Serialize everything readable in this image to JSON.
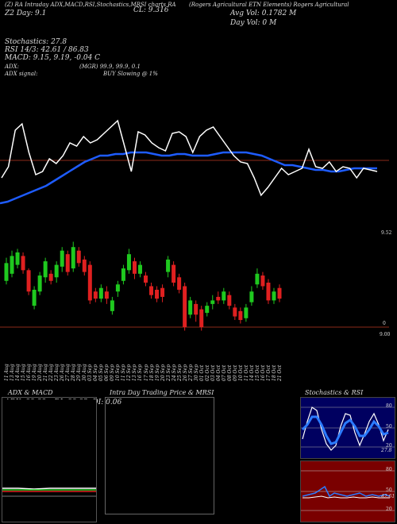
{
  "header": {
    "left_title": "(Z) RA Intraday ADX,MACD,RSI,Stochastics,MRSI charts RA",
    "cl_label": "CL: 9.316",
    "right_title": "(Rogers Agricultural ETN Elements) Rogers Agricultural",
    "line2_left": "Z2 Day:",
    "line2_val": "9.1",
    "avg_vol": "Avg Vol: 0.1782  M",
    "day_vol": "Day Vol: 0  M",
    "stochastics": "Stochastics: 27.8",
    "rsi": "RSI 14/3: 42.61 / 86.83",
    "macd": "MACD: 9.15, 9.19, -0.04  C",
    "adx": "ADX:",
    "mgr": "(MGR) 99.9,  99.9,  0.1",
    "adx_signal": "ADX  signal:",
    "buy_slowing": "BUY Slowing @ 1%"
  },
  "price_axis": {
    "top_label": "9.52",
    "zero_label": "0",
    "bottom_label": "9.00"
  },
  "x_dates": [
    "11 Aug",
    "13 Aug",
    "14 Aug",
    "15 Aug",
    "16 Aug",
    "19 Aug",
    "20 Aug",
    "21 Aug",
    "22 Aug",
    "23 Aug",
    "26 Aug",
    "27 Aug",
    "28 Aug",
    "29 Aug",
    "30 Aug",
    "03 Sep",
    "04 Sep",
    "05 Sep",
    "06 Sep",
    "09 Sep",
    "10 Sep",
    "11 Sep",
    "12 Sep",
    "13 Sep",
    "16 Sep",
    "17 Sep",
    "18 Sep",
    "19 Sep",
    "20 Sep",
    "23 Sep",
    "24 Sep",
    "25 Sep",
    "26 Sep",
    "27 Sep",
    "30 Sep",
    "01 Oct",
    "02 Oct",
    "03 Oct",
    "04 Oct",
    "07 Oct",
    "08 Oct",
    "09 Oct",
    "10 Oct",
    "11 Oct",
    "14 Oct",
    "15 Oct",
    "16 Oct",
    "17 Oct",
    "18 Oct",
    "21 Oct"
  ],
  "panels": {
    "adx_title": "ADX  & MACD",
    "adx_values": "ADX: 99.88  +DI: 99.92  -DI: 0.06",
    "intra_title": "Intra  Day Trading Price  & MRSI",
    "stoch_title": "Stochastics & RSI",
    "stoch_levels": [
      "80",
      "50",
      "20"
    ],
    "rsi_levels": [
      "80",
      "50",
      "20"
    ],
    "stoch_val": "27.8",
    "rsi_val": "42.61"
  },
  "colors": {
    "bull": "#1fc91f",
    "bear": "#e02020",
    "ma": "#1e5cff",
    "price": "#ffffff",
    "navy": "#000060",
    "maroon": "#7a0000"
  },
  "chart_data": {
    "type": "candlestick",
    "price_line": [
      0.62,
      0.55,
      0.32,
      0.28,
      0.46,
      0.6,
      0.58,
      0.5,
      0.53,
      0.48,
      0.4,
      0.42,
      0.36,
      0.4,
      0.38,
      0.34,
      0.3,
      0.26,
      0.42,
      0.58,
      0.33,
      0.35,
      0.4,
      0.43,
      0.45,
      0.34,
      0.33,
      0.36,
      0.46,
      0.36,
      0.32,
      0.3,
      0.36,
      0.42,
      0.48,
      0.52,
      0.53,
      0.62,
      0.73,
      0.68,
      0.62,
      0.56,
      0.6,
      0.58,
      0.56,
      0.44,
      0.55,
      0.56,
      0.52,
      0.58,
      0.55,
      0.56,
      0.62,
      0.56,
      0.57,
      0.58
    ],
    "ma_line": [
      0.78,
      0.77,
      0.75,
      0.73,
      0.71,
      0.69,
      0.67,
      0.64,
      0.61,
      0.58,
      0.55,
      0.52,
      0.5,
      0.48,
      0.48,
      0.47,
      0.47,
      0.46,
      0.46,
      0.46,
      0.47,
      0.48,
      0.48,
      0.47,
      0.47,
      0.48,
      0.48,
      0.48,
      0.47,
      0.46,
      0.46,
      0.46,
      0.46,
      0.47,
      0.48,
      0.5,
      0.52,
      0.54,
      0.54,
      0.55,
      0.56,
      0.57,
      0.57,
      0.58,
      0.58,
      0.57,
      0.56,
      0.56,
      0.56,
      0.56
    ],
    "candles": [
      {
        "o": 0.52,
        "c": 0.72,
        "h": 0.78,
        "l": 0.48
      },
      {
        "o": 0.6,
        "c": 0.8,
        "h": 0.86,
        "l": 0.56
      },
      {
        "o": 0.7,
        "c": 0.84,
        "h": 0.88,
        "l": 0.66
      },
      {
        "o": 0.8,
        "c": 0.64,
        "h": 0.84,
        "l": 0.6
      },
      {
        "o": 0.64,
        "c": 0.4,
        "h": 0.66,
        "l": 0.36
      },
      {
        "o": 0.24,
        "c": 0.42,
        "h": 0.46,
        "l": 0.2
      },
      {
        "o": 0.4,
        "c": 0.58,
        "h": 0.62,
        "l": 0.36
      },
      {
        "o": 0.56,
        "c": 0.74,
        "h": 0.78,
        "l": 0.5
      },
      {
        "o": 0.6,
        "c": 0.52,
        "h": 0.64,
        "l": 0.48
      },
      {
        "o": 0.56,
        "c": 0.7,
        "h": 0.74,
        "l": 0.5
      },
      {
        "o": 0.68,
        "c": 0.86,
        "h": 0.9,
        "l": 0.62
      },
      {
        "o": 0.82,
        "c": 0.62,
        "h": 0.86,
        "l": 0.58
      },
      {
        "o": 0.66,
        "c": 0.9,
        "h": 0.96,
        "l": 0.62
      },
      {
        "o": 0.86,
        "c": 0.72,
        "h": 0.9,
        "l": 0.68
      },
      {
        "o": 0.76,
        "c": 0.62,
        "h": 0.8,
        "l": 0.58
      },
      {
        "o": 0.7,
        "c": 0.3,
        "h": 0.74,
        "l": 0.26
      },
      {
        "o": 0.4,
        "c": 0.32,
        "h": 0.44,
        "l": 0.28
      },
      {
        "o": 0.32,
        "c": 0.44,
        "h": 0.48,
        "l": 0.28
      },
      {
        "o": 0.4,
        "c": 0.32,
        "h": 0.46,
        "l": 0.26
      },
      {
        "o": 0.18,
        "c": 0.3,
        "h": 0.34,
        "l": 0.14
      },
      {
        "o": 0.4,
        "c": 0.48,
        "h": 0.52,
        "l": 0.34
      },
      {
        "o": 0.52,
        "c": 0.66,
        "h": 0.7,
        "l": 0.48
      },
      {
        "o": 0.64,
        "c": 0.82,
        "h": 0.88,
        "l": 0.6
      },
      {
        "o": 0.74,
        "c": 0.6,
        "h": 0.78,
        "l": 0.54
      },
      {
        "o": 0.6,
        "c": 0.7,
        "h": 0.74,
        "l": 0.56
      },
      {
        "o": 0.58,
        "c": 0.5,
        "h": 0.62,
        "l": 0.46
      },
      {
        "o": 0.46,
        "c": 0.36,
        "h": 0.5,
        "l": 0.32
      },
      {
        "o": 0.42,
        "c": 0.32,
        "h": 0.46,
        "l": 0.28
      },
      {
        "o": 0.44,
        "c": 0.34,
        "h": 0.48,
        "l": 0.28
      },
      {
        "o": 0.62,
        "c": 0.76,
        "h": 0.8,
        "l": 0.56
      },
      {
        "o": 0.7,
        "c": 0.5,
        "h": 0.74,
        "l": 0.46
      },
      {
        "o": 0.56,
        "c": 0.42,
        "h": 0.6,
        "l": 0.38
      },
      {
        "o": 0.46,
        "c": 0.0,
        "h": 0.5,
        "l": -0.04
      },
      {
        "o": 0.14,
        "c": 0.3,
        "h": 0.34,
        "l": 0.1
      },
      {
        "o": 0.26,
        "c": 0.14,
        "h": 0.3,
        "l": 0.06
      },
      {
        "o": 0.2,
        "c": 0.0,
        "h": 0.24,
        "l": -0.04
      },
      {
        "o": 0.16,
        "c": 0.24,
        "h": 0.28,
        "l": 0.12
      },
      {
        "o": 0.26,
        "c": 0.3,
        "h": 0.36,
        "l": 0.2
      },
      {
        "o": 0.34,
        "c": 0.3,
        "h": 0.4,
        "l": 0.26
      },
      {
        "o": 0.3,
        "c": 0.4,
        "h": 0.44,
        "l": 0.26
      },
      {
        "o": 0.36,
        "c": 0.24,
        "h": 0.4,
        "l": 0.2
      },
      {
        "o": 0.22,
        "c": 0.12,
        "h": 0.26,
        "l": 0.08
      },
      {
        "o": 0.18,
        "c": 0.08,
        "h": 0.22,
        "l": 0.04
      },
      {
        "o": 0.1,
        "c": 0.22,
        "h": 0.26,
        "l": 0.06
      },
      {
        "o": 0.28,
        "c": 0.4,
        "h": 0.46,
        "l": 0.24
      },
      {
        "o": 0.48,
        "c": 0.6,
        "h": 0.66,
        "l": 0.44
      },
      {
        "o": 0.58,
        "c": 0.46,
        "h": 0.62,
        "l": 0.42
      },
      {
        "o": 0.5,
        "c": 0.3,
        "h": 0.54,
        "l": 0.26
      },
      {
        "o": 0.3,
        "c": 0.4,
        "h": 0.44,
        "l": 0.26
      },
      {
        "o": 0.44,
        "c": 0.32,
        "h": 0.48,
        "l": 0.28
      }
    ]
  }
}
